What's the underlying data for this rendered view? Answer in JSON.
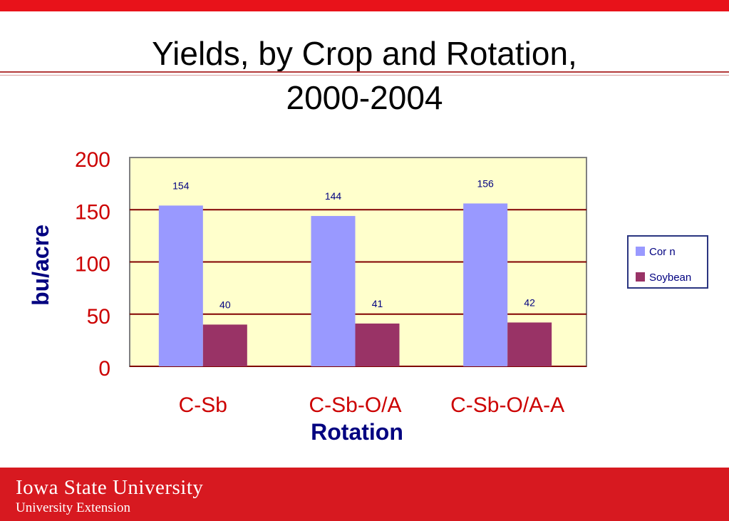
{
  "slide": {
    "title_line1": "Yields, by Crop and Rotation,",
    "title_line2": "2000-2004",
    "footer_name": "Iowa State University",
    "footer_sub": "University Extension"
  },
  "colors": {
    "band": "#e8121a",
    "plot_bg": "#ffffcc",
    "gridline": "#800000",
    "corn": "#9999ff",
    "soybean": "#993366",
    "tick_text": "#cc0000",
    "axis_title": "#000080",
    "bar_label": "#000080"
  },
  "chart_data": {
    "type": "bar",
    "categories": [
      "C-Sb",
      "C-Sb-O/A",
      "C-Sb-O/A-A"
    ],
    "series": [
      {
        "name": "Cor n",
        "values": [
          154,
          144,
          156
        ],
        "labels": [
          "154",
          "144",
          "156"
        ]
      },
      {
        "name": "Soybean",
        "values": [
          40,
          41,
          42
        ],
        "labels": [
          "40",
          "41",
          "42"
        ]
      }
    ],
    "xlabel": "Rotation",
    "ylabel": "bu/acre",
    "ylim": [
      0,
      200
    ],
    "yticks": [
      "0",
      "50",
      "100",
      "150",
      "200"
    ],
    "ytick_values": [
      0,
      50,
      100,
      150,
      200
    ],
    "grid": true,
    "legend_position": "right"
  }
}
